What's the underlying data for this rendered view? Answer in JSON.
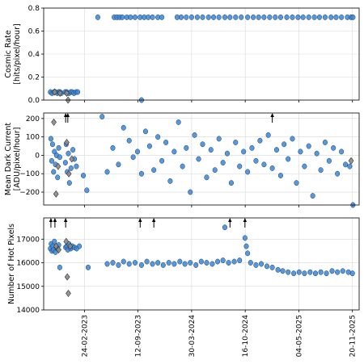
{
  "chart_data": [
    {
      "type": "scatter",
      "ylabel": "Cosmic Rate\n[hits/pixel/hour]",
      "yticks": [
        "0.0",
        "0.2",
        "0.4",
        "0.6",
        "0.8"
      ],
      "ylim": [
        0.0,
        0.8
      ],
      "grid": true,
      "series": [
        {
          "color": "#3a86d6",
          "marker": "circle",
          "points": [
            [
              "2022-10-20",
              0.07
            ],
            [
              "2022-10-26",
              0.06
            ],
            [
              "2022-11-02",
              0.07
            ],
            [
              "2022-11-08",
              0.07
            ],
            [
              "2022-11-15",
              0.06
            ],
            [
              "2022-11-20",
              0.07
            ],
            [
              "2022-11-25",
              0.07
            ],
            [
              "2022-11-30",
              0.06
            ],
            [
              "2022-12-14",
              0.07
            ],
            [
              "2022-12-20",
              0.07
            ],
            [
              "2022-12-28",
              0.06
            ],
            [
              "2023-01-04",
              0.07
            ],
            [
              "2023-01-10",
              0.07
            ],
            [
              "2023-01-16",
              0.06
            ],
            [
              "2023-01-24",
              0.07
            ],
            [
              "2023-01-30",
              0.07
            ],
            [
              "2023-04-15",
              0.72
            ],
            [
              "2023-06-15",
              0.72
            ],
            [
              "2023-06-25",
              0.72
            ],
            [
              "2023-07-05",
              0.72
            ],
            [
              "2023-07-15",
              0.72
            ],
            [
              "2023-08-01",
              0.72
            ],
            [
              "2023-08-15",
              0.72
            ],
            [
              "2023-09-01",
              0.72
            ],
            [
              "2023-09-20",
              0.72
            ],
            [
              "2023-10-05",
              0.72
            ],
            [
              "2023-10-20",
              0.72
            ],
            [
              "2023-11-05",
              0.72
            ],
            [
              "2023-11-25",
              0.72
            ],
            [
              "2023-12-10",
              0.72
            ],
            [
              "2024-02-05",
              0.72
            ],
            [
              "2024-02-20",
              0.72
            ],
            [
              "2024-03-10",
              0.72
            ],
            [
              "2024-03-30",
              0.72
            ],
            [
              "2024-04-20",
              0.72
            ],
            [
              "2024-05-10",
              0.72
            ],
            [
              "2024-06-01",
              0.72
            ],
            [
              "2024-06-20",
              0.72
            ],
            [
              "2024-07-10",
              0.72
            ],
            [
              "2024-08-01",
              0.72
            ],
            [
              "2024-08-20",
              0.72
            ],
            [
              "2024-09-10",
              0.72
            ],
            [
              "2024-10-01",
              0.72
            ],
            [
              "2024-10-25",
              0.72
            ],
            [
              "2024-11-15",
              0.72
            ],
            [
              "2024-12-05",
              0.72
            ],
            [
              "2024-12-25",
              0.72
            ],
            [
              "2025-01-15",
              0.72
            ],
            [
              "2025-02-05",
              0.72
            ],
            [
              "2025-02-25",
              0.72
            ],
            [
              "2025-03-20",
              0.72
            ],
            [
              "2025-04-10",
              0.72
            ],
            [
              "2025-05-01",
              0.72
            ],
            [
              "2025-05-20",
              0.72
            ],
            [
              "2025-06-10",
              0.72
            ],
            [
              "2025-07-01",
              0.72
            ],
            [
              "2025-07-20",
              0.72
            ],
            [
              "2025-08-10",
              0.72
            ],
            [
              "2025-09-01",
              0.72
            ],
            [
              "2025-09-20",
              0.72
            ],
            [
              "2025-10-10",
              0.72
            ],
            [
              "2025-11-01",
              0.72
            ],
            [
              "2025-11-15",
              0.72
            ],
            [
              "2025-11-22",
              0.72
            ],
            [
              "2023-09-25",
              0.0
            ]
          ]
        },
        {
          "color": "#8a8a8a",
          "marker": "diamond",
          "points": [
            [
              "2022-11-05",
              0.07
            ],
            [
              "2022-11-25",
              0.06
            ],
            [
              "2022-12-20",
              0.06
            ],
            [
              "2022-12-25",
              0.0
            ]
          ]
        }
      ],
      "arrows": []
    },
    {
      "type": "scatter",
      "ylabel": "Mean Dark Current\n[ADU/pixel/hour]",
      "yticks": [
        "−200",
        "−100",
        "0",
        "100",
        "200"
      ],
      "ylim": [
        -270,
        230
      ],
      "grid": true,
      "series": [
        {
          "color": "#3a86d6",
          "marker": "circle",
          "points": [
            [
              "2022-10-22",
              90
            ],
            [
              "2022-10-25",
              -30
            ],
            [
              "2022-10-28",
              60
            ],
            [
              "2022-11-01",
              -90
            ],
            [
              "2022-11-04",
              20
            ],
            [
              "2022-11-08",
              -50
            ],
            [
              "2022-11-12",
              0
            ],
            [
              "2022-11-16",
              -120
            ],
            [
              "2022-11-20",
              40
            ],
            [
              "2022-11-24",
              -10
            ],
            [
              "2022-12-15",
              -40
            ],
            [
              "2022-12-18",
              60
            ],
            [
              "2022-12-22",
              -90
            ],
            [
              "2022-12-26",
              10
            ],
            [
              "2022-12-30",
              -150
            ],
            [
              "2023-01-05",
              -70
            ],
            [
              "2023-01-12",
              30
            ],
            [
              "2023-01-18",
              -20
            ],
            [
              "2023-01-25",
              -60
            ],
            [
              "2023-02-20",
              -110
            ],
            [
              "2023-03-05",
              -190
            ],
            [
              "2023-05-01",
              210
            ],
            [
              "2023-05-20",
              -90
            ],
            [
              "2023-06-10",
              40
            ],
            [
              "2023-07-01",
              -50
            ],
            [
              "2023-07-20",
              150
            ],
            [
              "2023-08-10",
              80
            ],
            [
              "2023-08-25",
              -10
            ],
            [
              "2023-09-10",
              20
            ],
            [
              "2023-09-25",
              -100
            ],
            [
              "2023-10-10",
              130
            ],
            [
              "2023-10-25",
              50
            ],
            [
              "2023-11-10",
              -80
            ],
            [
              "2023-11-25",
              100
            ],
            [
              "2023-12-10",
              -30
            ],
            [
              "2023-12-25",
              70
            ],
            [
              "2024-01-10",
              -140
            ],
            [
              "2024-01-25",
              20
            ],
            [
              "2024-02-10",
              180
            ],
            [
              "2024-02-25",
              -60
            ],
            [
              "2024-03-10",
              40
            ],
            [
              "2024-03-25",
              -200
            ],
            [
              "2024-04-10",
              110
            ],
            [
              "2024-04-25",
              -20
            ],
            [
              "2024-05-10",
              60
            ],
            [
              "2024-05-25",
              -120
            ],
            [
              "2024-06-10",
              30
            ],
            [
              "2024-06-25",
              -80
            ],
            [
              "2024-07-10",
              90
            ],
            [
              "2024-07-25",
              -40
            ],
            [
              "2024-08-10",
              10
            ],
            [
              "2024-08-25",
              -150
            ],
            [
              "2024-09-10",
              70
            ],
            [
              "2024-09-25",
              -60
            ],
            [
              "2024-10-10",
              20
            ],
            [
              "2024-10-25",
              -90
            ],
            [
              "2024-11-10",
              40
            ],
            [
              "2024-11-25",
              -30
            ],
            [
              "2024-12-10",
              80
            ],
            [
              "2024-12-25",
              -50
            ],
            [
              "2025-01-10",
              110
            ],
            [
              "2025-01-25",
              -70
            ],
            [
              "2025-02-10",
              30
            ],
            [
              "2025-02-25",
              -110
            ],
            [
              "2025-03-10",
              60
            ],
            [
              "2025-03-25",
              -20
            ],
            [
              "2025-04-10",
              90
            ],
            [
              "2025-04-25",
              -150
            ],
            [
              "2025-05-10",
              20
            ],
            [
              "2025-05-25",
              -60
            ],
            [
              "2025-06-10",
              50
            ],
            [
              "2025-06-25",
              -220
            ],
            [
              "2025-07-10",
              10
            ],
            [
              "2025-07-25",
              -80
            ],
            [
              "2025-08-10",
              70
            ],
            [
              "2025-08-25",
              -30
            ],
            [
              "2025-09-10",
              40
            ],
            [
              "2025-09-25",
              -100
            ],
            [
              "2025-10-10",
              20
            ],
            [
              "2025-10-25",
              -50
            ],
            [
              "2025-11-10",
              -60
            ],
            [
              "2025-11-22",
              -270
            ]
          ]
        },
        {
          "color": "#8a8a8a",
          "marker": "diamond",
          "points": [
            [
              "2022-11-02",
              180
            ],
            [
              "2022-11-10",
              -210
            ],
            [
              "2022-11-18",
              -60
            ],
            [
              "2022-12-20",
              70
            ],
            [
              "2022-12-28",
              -100
            ],
            [
              "2023-01-08",
              -20
            ],
            [
              "2025-11-15",
              -30
            ]
          ]
        }
      ],
      "arrows": [
        "2022-12-16",
        "2022-12-24",
        "2025-01-25"
      ]
    },
    {
      "type": "scatter",
      "ylabel": "Number of Hot Pixels",
      "yticks": [
        "14000",
        "15000",
        "16000",
        "17000"
      ],
      "ylim": [
        14000,
        17900
      ],
      "grid": true,
      "xticks": [
        "24-02-2023",
        "12-09-2023",
        "30-03-2024",
        "16-10-2024",
        "04-05-2025",
        "20-11-2025"
      ],
      "series": [
        {
          "color": "#3a86d6",
          "marker": "circle",
          "points": [
            [
              "2022-10-20",
              16600
            ],
            [
              "2022-10-23",
              16800
            ],
            [
              "2022-10-26",
              16500
            ],
            [
              "2022-10-29",
              16700
            ],
            [
              "2022-11-01",
              16550
            ],
            [
              "2022-11-04",
              16900
            ],
            [
              "2022-11-08",
              16450
            ],
            [
              "2022-11-12",
              16650
            ],
            [
              "2022-11-16",
              16600
            ],
            [
              "2022-11-20",
              16750
            ],
            [
              "2022-11-24",
              15800
            ],
            [
              "2022-12-16",
              16650
            ],
            [
              "2022-12-20",
              16700
            ],
            [
              "2022-12-24",
              16550
            ],
            [
              "2022-12-28",
              16800
            ],
            [
              "2023-01-04",
              16600
            ],
            [
              "2023-01-10",
              16700
            ],
            [
              "2023-01-18",
              16650
            ],
            [
              "2023-01-26",
              16600
            ],
            [
              "2023-02-05",
              16700
            ],
            [
              "2023-03-10",
              15800
            ],
            [
              "2023-05-20",
              15950
            ],
            [
              "2023-06-10",
              16000
            ],
            [
              "2023-07-01",
              15900
            ],
            [
              "2023-07-20",
              16050
            ],
            [
              "2023-08-10",
              15950
            ],
            [
              "2023-09-01",
              16000
            ],
            [
              "2023-09-25",
              15900
            ],
            [
              "2023-10-15",
              16050
            ],
            [
              "2023-11-05",
              15950
            ],
            [
              "2023-11-25",
              16000
            ],
            [
              "2023-12-15",
              15900
            ],
            [
              "2024-01-05",
              16000
            ],
            [
              "2024-01-25",
              15950
            ],
            [
              "2024-02-15",
              16050
            ],
            [
              "2024-03-05",
              15950
            ],
            [
              "2024-03-25",
              16000
            ],
            [
              "2024-04-15",
              15900
            ],
            [
              "2024-05-05",
              16050
            ],
            [
              "2024-05-25",
              16000
            ],
            [
              "2024-06-15",
              15950
            ],
            [
              "2024-07-05",
              16050
            ],
            [
              "2024-07-25",
              16100
            ],
            [
              "2024-08-15",
              16000
            ],
            [
              "2024-09-05",
              16050
            ],
            [
              "2024-09-25",
              16100
            ],
            [
              "2024-10-15",
              17050
            ],
            [
              "2024-10-20",
              16700
            ],
            [
              "2024-10-25",
              16400
            ],
            [
              "2024-11-05",
              16000
            ],
            [
              "2024-11-25",
              15900
            ],
            [
              "2024-12-15",
              15950
            ],
            [
              "2025-01-05",
              15850
            ],
            [
              "2025-01-25",
              15800
            ],
            [
              "2025-02-15",
              15700
            ],
            [
              "2025-03-05",
              15650
            ],
            [
              "2025-03-25",
              15600
            ],
            [
              "2025-04-15",
              15550
            ],
            [
              "2025-05-05",
              15600
            ],
            [
              "2025-05-25",
              15550
            ],
            [
              "2025-06-15",
              15600
            ],
            [
              "2025-07-05",
              15550
            ],
            [
              "2025-07-25",
              15600
            ],
            [
              "2025-08-15",
              15550
            ],
            [
              "2025-09-05",
              15650
            ],
            [
              "2025-09-25",
              15600
            ],
            [
              "2025-10-15",
              15650
            ],
            [
              "2025-11-05",
              15600
            ],
            [
              "2025-11-20",
              15550
            ],
            [
              "2024-08-01",
              17500
            ]
          ]
        },
        {
          "color": "#8a8a8a",
          "marker": "diamond",
          "points": [
            [
              "2022-11-10",
              16700
            ],
            [
              "2022-12-18",
              16900
            ],
            [
              "2022-12-22",
              15400
            ],
            [
              "2022-12-26",
              14700
            ],
            [
              "2023-01-02",
              16700
            ],
            [
              "2022-11-20",
              16550
            ]
          ]
        }
      ],
      "arrows": [
        "2022-10-22",
        "2022-11-06",
        "2022-12-16",
        "2023-09-20",
        "2023-11-10",
        "2024-08-20",
        "2024-10-15"
      ]
    }
  ]
}
